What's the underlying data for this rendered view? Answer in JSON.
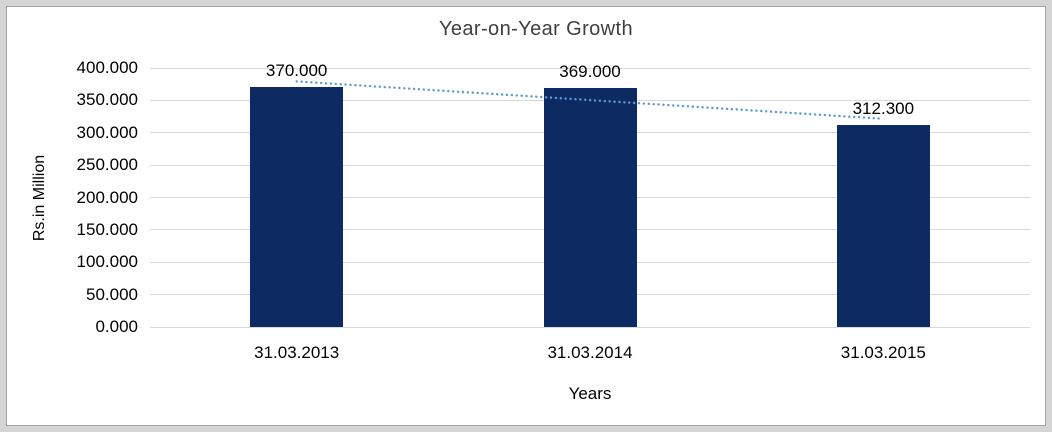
{
  "colors": {
    "bar_fill": "#0D2A63",
    "trendline": "#5B9BD5",
    "gridline": "#D9D9D9",
    "title_text": "#3F3F3F",
    "axis_text": "#000000",
    "frame_background": "#D5D5D5",
    "chart_border": "#A3A3A3",
    "chart_background": "#FFFFFF"
  },
  "chart_data": {
    "type": "bar",
    "title": "Year-on-Year Growth",
    "xlabel": "Years",
    "ylabel": "Rs.in Million",
    "categories": [
      "31.03.2013",
      "31.03.2014",
      "31.03.2015"
    ],
    "values": [
      370.0,
      369.0,
      312.3
    ],
    "data_labels": [
      "370.000",
      "369.000",
      "312.300"
    ],
    "ylim": [
      0,
      400
    ],
    "ytick_step": 50,
    "ytick_labels": [
      "0.000",
      "50.000",
      "100.000",
      "150.000",
      "200.000",
      "250.000",
      "300.000",
      "350.000",
      "400.000"
    ],
    "grid": true,
    "legend": "none",
    "trendline": {
      "type": "linear",
      "style": "dotted"
    }
  }
}
